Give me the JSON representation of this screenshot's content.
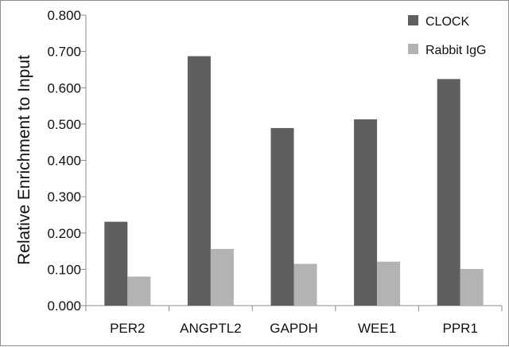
{
  "chart_data": {
    "type": "bar",
    "categories": [
      "PER2",
      "ANGPTL2",
      "GAPDH",
      "WEE1",
      "PPR1"
    ],
    "series": [
      {
        "name": "CLOCK",
        "color": "#5f5f5f",
        "values": [
          0.231,
          0.687,
          0.489,
          0.513,
          0.624
        ]
      },
      {
        "name": "Rabbit IgG",
        "color": "#b3b3b3",
        "values": [
          0.08,
          0.156,
          0.115,
          0.121,
          0.101
        ]
      }
    ],
    "title": "",
    "xlabel": "",
    "ylabel": "Relative Enrichment to Input",
    "ylim": [
      0,
      0.8
    ],
    "yticks": [
      "0.000",
      "0.100",
      "0.200",
      "0.300",
      "0.400",
      "0.500",
      "0.600",
      "0.700",
      "0.800"
    ],
    "grid": false,
    "legend_position": "top-right"
  }
}
